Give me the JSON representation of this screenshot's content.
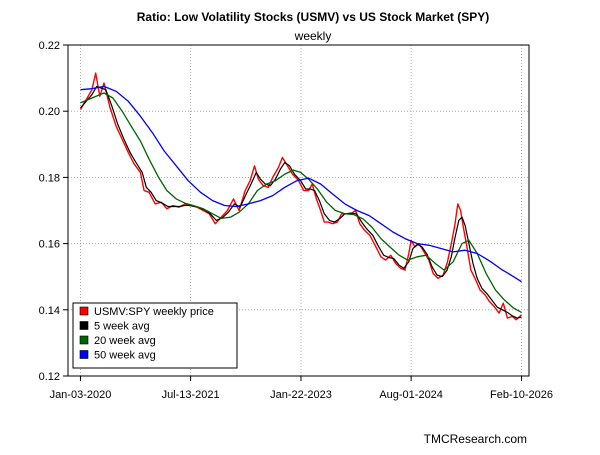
{
  "chart_data": {
    "type": "line",
    "title": "Ratio: Low Volatility Stocks (USMV) vs US Stock Market (SPY)",
    "subtitle": "weekly",
    "xlabel": "",
    "ylabel": "",
    "watermark": "TMCResearch.com",
    "x_range": [
      "2019-11-01",
      "2026-03-20"
    ],
    "x_ticks": [
      "Jan-03-2020",
      "Jul-13-2021",
      "Jan-22-2023",
      "Aug-01-2024",
      "Feb-10-2026"
    ],
    "x_tick_dates": [
      "2020-01-03",
      "2021-07-13",
      "2023-01-22",
      "2024-08-01",
      "2026-02-10"
    ],
    "ylim": [
      0.12,
      0.22
    ],
    "y_ticks": [
      "0.12",
      "0.14",
      "0.16",
      "0.18",
      "0.20",
      "0.22"
    ],
    "grid": true,
    "legend_position": "bottom-left",
    "series": [
      {
        "name": "USMV:SPY weekly price",
        "color": "#ff0000",
        "points": [
          [
            "2020-01-03",
            0.2005
          ],
          [
            "2020-02-01",
            0.2035
          ],
          [
            "2020-03-01",
            0.2065
          ],
          [
            "2020-03-20",
            0.2115
          ],
          [
            "2020-04-10",
            0.2045
          ],
          [
            "2020-05-01",
            0.2085
          ],
          [
            "2020-06-01",
            0.201
          ],
          [
            "2020-07-01",
            0.1955
          ],
          [
            "2020-08-01",
            0.1915
          ],
          [
            "2020-09-01",
            0.1875
          ],
          [
            "2020-10-01",
            0.184
          ],
          [
            "2020-11-01",
            0.1815
          ],
          [
            "2020-11-20",
            0.176
          ],
          [
            "2020-12-15",
            0.1755
          ],
          [
            "2021-01-15",
            0.172
          ],
          [
            "2021-02-15",
            0.1725
          ],
          [
            "2021-03-15",
            0.1705
          ],
          [
            "2021-04-15",
            0.1715
          ],
          [
            "2021-05-15",
            0.171
          ],
          [
            "2021-06-15",
            0.172
          ],
          [
            "2021-07-13",
            0.1715
          ],
          [
            "2021-08-15",
            0.171
          ],
          [
            "2021-09-15",
            0.17
          ],
          [
            "2021-10-15",
            0.169
          ],
          [
            "2021-11-15",
            0.166
          ],
          [
            "2021-12-15",
            0.168
          ],
          [
            "2022-01-15",
            0.17
          ],
          [
            "2022-02-15",
            0.1735
          ],
          [
            "2022-03-15",
            0.17
          ],
          [
            "2022-04-15",
            0.176
          ],
          [
            "2022-05-10",
            0.179
          ],
          [
            "2022-06-01",
            0.1835
          ],
          [
            "2022-06-20",
            0.1795
          ],
          [
            "2022-07-15",
            0.1775
          ],
          [
            "2022-08-10",
            0.177
          ],
          [
            "2022-09-01",
            0.18
          ],
          [
            "2022-09-30",
            0.183
          ],
          [
            "2022-10-20",
            0.186
          ],
          [
            "2022-11-10",
            0.184
          ],
          [
            "2022-12-10",
            0.181
          ],
          [
            "2023-01-10",
            0.179
          ],
          [
            "2023-02-05",
            0.176
          ],
          [
            "2023-03-01",
            0.176
          ],
          [
            "2023-03-20",
            0.178
          ],
          [
            "2023-04-10",
            0.1735
          ],
          [
            "2023-05-01",
            0.17
          ],
          [
            "2023-05-20",
            0.1665
          ],
          [
            "2023-06-10",
            0.1665
          ],
          [
            "2023-07-01",
            0.166
          ],
          [
            "2023-07-25",
            0.1665
          ],
          [
            "2023-08-15",
            0.169
          ],
          [
            "2023-09-10",
            0.169
          ],
          [
            "2023-10-01",
            0.169
          ],
          [
            "2023-10-25",
            0.17
          ],
          [
            "2023-11-15",
            0.166
          ],
          [
            "2023-12-10",
            0.164
          ],
          [
            "2024-01-05",
            0.1625
          ],
          [
            "2024-02-01",
            0.1595
          ],
          [
            "2024-03-01",
            0.156
          ],
          [
            "2024-03-25",
            0.155
          ],
          [
            "2024-04-20",
            0.1565
          ],
          [
            "2024-05-15",
            0.154
          ],
          [
            "2024-06-10",
            0.1525
          ],
          [
            "2024-07-01",
            0.152
          ],
          [
            "2024-07-20",
            0.157
          ],
          [
            "2024-08-01",
            0.161
          ],
          [
            "2024-08-20",
            0.159
          ],
          [
            "2024-09-10",
            0.16
          ],
          [
            "2024-10-05",
            0.1575
          ],
          [
            "2024-10-30",
            0.155
          ],
          [
            "2024-11-20",
            0.151
          ],
          [
            "2024-12-15",
            0.1495
          ],
          [
            "2025-01-10",
            0.1505
          ],
          [
            "2025-02-01",
            0.1545
          ],
          [
            "2025-02-20",
            0.16
          ],
          [
            "2025-03-10",
            0.1655
          ],
          [
            "2025-03-25",
            0.172
          ],
          [
            "2025-04-08",
            0.17
          ],
          [
            "2025-04-22",
            0.165
          ],
          [
            "2025-05-10",
            0.159
          ],
          [
            "2025-05-30",
            0.152
          ],
          [
            "2025-06-20",
            0.1495
          ],
          [
            "2025-07-15",
            0.146
          ],
          [
            "2025-08-10",
            0.1445
          ],
          [
            "2025-09-01",
            0.1425
          ],
          [
            "2025-09-25",
            0.141
          ],
          [
            "2025-10-20",
            0.139
          ],
          [
            "2025-11-10",
            0.142
          ],
          [
            "2025-12-01",
            0.1375
          ],
          [
            "2025-12-25",
            0.138
          ],
          [
            "2026-01-15",
            0.137
          ],
          [
            "2026-02-10",
            0.1385
          ]
        ]
      },
      {
        "name": "5 week avg",
        "color": "#000000",
        "points": [
          [
            "2020-01-03",
            0.201
          ],
          [
            "2020-02-01",
            0.203
          ],
          [
            "2020-03-01",
            0.205
          ],
          [
            "2020-03-25",
            0.2075
          ],
          [
            "2020-04-15",
            0.207
          ],
          [
            "2020-05-10",
            0.2065
          ],
          [
            "2020-06-10",
            0.2015
          ],
          [
            "2020-07-10",
            0.196
          ],
          [
            "2020-08-10",
            0.1915
          ],
          [
            "2020-09-10",
            0.1875
          ],
          [
            "2020-10-10",
            0.1845
          ],
          [
            "2020-11-10",
            0.1815
          ],
          [
            "2020-12-01",
            0.177
          ],
          [
            "2020-12-25",
            0.1755
          ],
          [
            "2021-01-20",
            0.173
          ],
          [
            "2021-02-20",
            0.1722
          ],
          [
            "2021-03-20",
            0.1712
          ],
          [
            "2021-04-20",
            0.1712
          ],
          [
            "2021-05-20",
            0.1712
          ],
          [
            "2021-06-20",
            0.1716
          ],
          [
            "2021-07-20",
            0.1714
          ],
          [
            "2021-08-20",
            0.171
          ],
          [
            "2021-09-20",
            0.1702
          ],
          [
            "2021-10-20",
            0.169
          ],
          [
            "2021-11-20",
            0.167
          ],
          [
            "2021-12-20",
            0.1678
          ],
          [
            "2022-01-20",
            0.1695
          ],
          [
            "2022-02-20",
            0.172
          ],
          [
            "2022-03-20",
            0.171
          ],
          [
            "2022-04-20",
            0.175
          ],
          [
            "2022-05-15",
            0.178
          ],
          [
            "2022-06-10",
            0.1815
          ],
          [
            "2022-07-01",
            0.1795
          ],
          [
            "2022-07-25",
            0.178
          ],
          [
            "2022-08-20",
            0.1775
          ],
          [
            "2022-09-15",
            0.1795
          ],
          [
            "2022-10-10",
            0.1825
          ],
          [
            "2022-11-01",
            0.1845
          ],
          [
            "2022-11-25",
            0.1835
          ],
          [
            "2022-12-20",
            0.181
          ],
          [
            "2023-01-20",
            0.179
          ],
          [
            "2023-02-15",
            0.1765
          ],
          [
            "2023-03-10",
            0.1765
          ],
          [
            "2023-04-01",
            0.176
          ],
          [
            "2023-04-25",
            0.173
          ],
          [
            "2023-05-20",
            0.169
          ],
          [
            "2023-06-15",
            0.167
          ],
          [
            "2023-07-10",
            0.1665
          ],
          [
            "2023-08-05",
            0.1675
          ],
          [
            "2023-09-01",
            0.169
          ],
          [
            "2023-10-01",
            0.1692
          ],
          [
            "2023-10-30",
            0.169
          ],
          [
            "2023-11-25",
            0.1665
          ],
          [
            "2023-12-20",
            0.1645
          ],
          [
            "2024-01-20",
            0.1625
          ],
          [
            "2024-02-15",
            0.1595
          ],
          [
            "2024-03-15",
            0.1565
          ],
          [
            "2024-04-10",
            0.1558
          ],
          [
            "2024-05-05",
            0.1555
          ],
          [
            "2024-06-01",
            0.1535
          ],
          [
            "2024-06-25",
            0.1525
          ],
          [
            "2024-07-20",
            0.1545
          ],
          [
            "2024-08-10",
            0.1585
          ],
          [
            "2024-09-01",
            0.1598
          ],
          [
            "2024-09-25",
            0.159
          ],
          [
            "2024-10-20",
            0.1568
          ],
          [
            "2024-11-15",
            0.153
          ],
          [
            "2024-12-10",
            0.1505
          ],
          [
            "2025-01-05",
            0.15
          ],
          [
            "2025-01-30",
            0.152
          ],
          [
            "2025-02-20",
            0.156
          ],
          [
            "2025-03-10",
            0.1615
          ],
          [
            "2025-03-30",
            0.167
          ],
          [
            "2025-04-15",
            0.168
          ],
          [
            "2025-05-01",
            0.1655
          ],
          [
            "2025-05-20",
            0.16
          ],
          [
            "2025-06-10",
            0.154
          ],
          [
            "2025-07-01",
            0.1495
          ],
          [
            "2025-07-25",
            0.1465
          ],
          [
            "2025-08-20",
            0.1448
          ],
          [
            "2025-09-15",
            0.1428
          ],
          [
            "2025-10-10",
            0.1408
          ],
          [
            "2025-11-05",
            0.14
          ],
          [
            "2025-12-01",
            0.1392
          ],
          [
            "2025-12-25",
            0.1382
          ],
          [
            "2026-01-20",
            0.1375
          ],
          [
            "2026-02-10",
            0.1378
          ]
        ]
      },
      {
        "name": "20 week avg",
        "color": "#006400",
        "points": [
          [
            "2020-01-03",
            0.2025
          ],
          [
            "2020-03-01",
            0.204
          ],
          [
            "2020-05-01",
            0.2055
          ],
          [
            "2020-06-15",
            0.204
          ],
          [
            "2020-08-01",
            0.2
          ],
          [
            "2020-09-15",
            0.1955
          ],
          [
            "2020-11-01",
            0.191
          ],
          [
            "2020-12-15",
            0.1855
          ],
          [
            "2021-02-01",
            0.18
          ],
          [
            "2021-03-15",
            0.176
          ],
          [
            "2021-05-01",
            0.1735
          ],
          [
            "2021-06-15",
            0.1722
          ],
          [
            "2021-08-01",
            0.1714
          ],
          [
            "2021-09-15",
            0.1705
          ],
          [
            "2021-11-01",
            0.169
          ],
          [
            "2021-12-15",
            0.1676
          ],
          [
            "2022-02-01",
            0.168
          ],
          [
            "2022-03-15",
            0.1695
          ],
          [
            "2022-05-01",
            0.172
          ],
          [
            "2022-06-15",
            0.176
          ],
          [
            "2022-08-01",
            0.178
          ],
          [
            "2022-09-15",
            0.179
          ],
          [
            "2022-11-01",
            0.181
          ],
          [
            "2022-12-15",
            0.1822
          ],
          [
            "2023-01-20",
            0.1815
          ],
          [
            "2023-03-01",
            0.1795
          ],
          [
            "2023-04-15",
            0.1765
          ],
          [
            "2023-06-01",
            0.1725
          ],
          [
            "2023-07-15",
            0.17
          ],
          [
            "2023-09-01",
            0.169
          ],
          [
            "2023-10-15",
            0.1688
          ],
          [
            "2023-12-01",
            0.1675
          ],
          [
            "2024-01-15",
            0.165
          ],
          [
            "2024-03-01",
            0.1615
          ],
          [
            "2024-04-15",
            0.159
          ],
          [
            "2024-06-01",
            0.1565
          ],
          [
            "2024-07-15",
            0.155
          ],
          [
            "2024-09-01",
            0.156
          ],
          [
            "2024-10-15",
            0.1565
          ],
          [
            "2024-12-01",
            0.154
          ],
          [
            "2025-01-15",
            0.152
          ],
          [
            "2025-03-01",
            0.1545
          ],
          [
            "2025-04-15",
            0.16
          ],
          [
            "2025-05-20",
            0.161
          ],
          [
            "2025-07-01",
            0.157
          ],
          [
            "2025-08-15",
            0.151
          ],
          [
            "2025-10-01",
            0.146
          ],
          [
            "2025-11-15",
            0.143
          ],
          [
            "2026-01-01",
            0.1405
          ],
          [
            "2026-02-10",
            0.1392
          ]
        ]
      },
      {
        "name": "50 week avg",
        "color": "#0000ff",
        "points": [
          [
            "2020-01-03",
            0.2065
          ],
          [
            "2020-03-01",
            0.2068
          ],
          [
            "2020-05-01",
            0.2075
          ],
          [
            "2020-07-01",
            0.206
          ],
          [
            "2020-09-01",
            0.203
          ],
          [
            "2020-11-01",
            0.1985
          ],
          [
            "2021-01-01",
            0.1935
          ],
          [
            "2021-03-01",
            0.188
          ],
          [
            "2021-05-01",
            0.1835
          ],
          [
            "2021-07-01",
            0.179
          ],
          [
            "2021-09-01",
            0.1755
          ],
          [
            "2021-11-01",
            0.173
          ],
          [
            "2022-01-01",
            0.1715
          ],
          [
            "2022-03-01",
            0.1712
          ],
          [
            "2022-05-01",
            0.172
          ],
          [
            "2022-07-01",
            0.173
          ],
          [
            "2022-09-01",
            0.1745
          ],
          [
            "2022-11-01",
            0.177
          ],
          [
            "2023-01-01",
            0.179
          ],
          [
            "2023-03-01",
            0.1798
          ],
          [
            "2023-05-01",
            0.178
          ],
          [
            "2023-07-01",
            0.175
          ],
          [
            "2023-09-01",
            0.172
          ],
          [
            "2023-11-01",
            0.17
          ],
          [
            "2024-01-01",
            0.1685
          ],
          [
            "2024-03-01",
            0.166
          ],
          [
            "2024-05-01",
            0.1635
          ],
          [
            "2024-07-01",
            0.1615
          ],
          [
            "2024-09-01",
            0.16
          ],
          [
            "2024-11-01",
            0.1595
          ],
          [
            "2025-01-01",
            0.1585
          ],
          [
            "2025-03-01",
            0.1575
          ],
          [
            "2025-05-01",
            0.158
          ],
          [
            "2025-07-01",
            0.157
          ],
          [
            "2025-09-01",
            0.1548
          ],
          [
            "2025-11-01",
            0.1522
          ],
          [
            "2026-01-01",
            0.15
          ],
          [
            "2026-02-10",
            0.1485
          ]
        ]
      }
    ]
  }
}
